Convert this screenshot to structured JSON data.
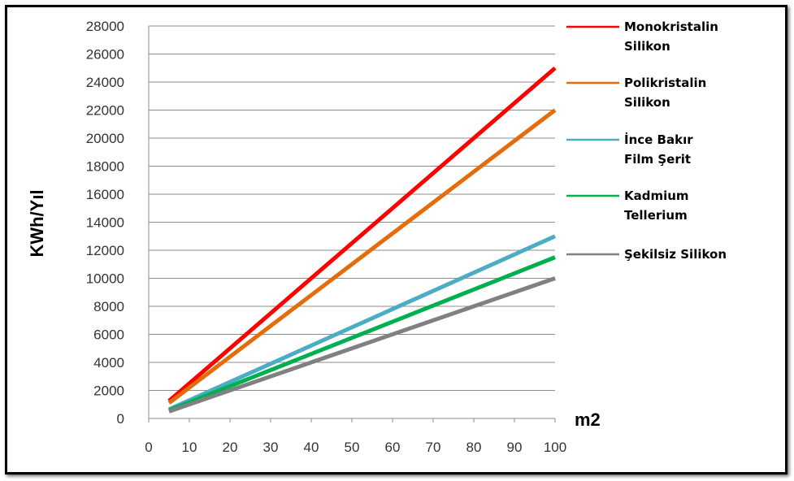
{
  "chart_data": {
    "type": "line",
    "title": "",
    "xlabel": "m2",
    "ylabel": "KWh/Yıl",
    "xlim": [
      0,
      100
    ],
    "ylim": [
      0,
      28000
    ],
    "x_ticks": [
      0,
      10,
      20,
      30,
      40,
      50,
      60,
      70,
      80,
      90,
      100
    ],
    "y_ticks": [
      0,
      2000,
      4000,
      6000,
      8000,
      10000,
      12000,
      14000,
      16000,
      18000,
      20000,
      22000,
      24000,
      26000,
      28000
    ],
    "grid": "horizontal",
    "legend_position": "right",
    "series": [
      {
        "name_lines": [
          "Monokristalin",
          "Silikon"
        ],
        "color": "#ff0000",
        "x": [
          5,
          100
        ],
        "y": [
          1250,
          25000
        ]
      },
      {
        "name_lines": [
          "Polikristalin",
          "Silikon"
        ],
        "color": "#e46c0a",
        "x": [
          5,
          100
        ],
        "y": [
          1100,
          22000
        ]
      },
      {
        "name_lines": [
          "İnce Bakır",
          "Film Şerit"
        ],
        "color": "#4bacc6",
        "x": [
          5,
          100
        ],
        "y": [
          650,
          13000
        ]
      },
      {
        "name_lines": [
          "Kadmium",
          "Tellerium"
        ],
        "color": "#00b050",
        "x": [
          5,
          100
        ],
        "y": [
          575,
          11500
        ]
      },
      {
        "name_lines": [
          "Şekilsiz Silikon"
        ],
        "color": "#808080",
        "x": [
          5,
          100
        ],
        "y": [
          500,
          10000
        ]
      }
    ]
  }
}
